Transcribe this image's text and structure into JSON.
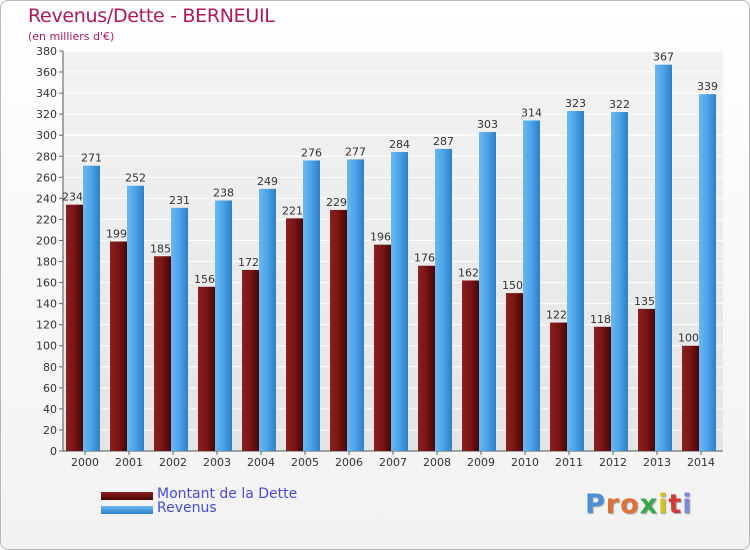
{
  "chart_data": {
    "type": "bar",
    "title": "Revenus/Dette - BERNEUIL",
    "subtitle": "(en milliers d'€)",
    "xlabel": "",
    "ylabel": "",
    "ylim": [
      0,
      380
    ],
    "ytick_step": 20,
    "grid": true,
    "categories": [
      "2000",
      "2001",
      "2002",
      "2003",
      "2004",
      "2005",
      "2006",
      "2007",
      "2008",
      "2009",
      "2010",
      "2011",
      "2012",
      "2013",
      "2014"
    ],
    "series": [
      {
        "name": "Montant de la Dette",
        "color": "#7a1414",
        "values": [
          234,
          199,
          185,
          156,
          172,
          221,
          229,
          196,
          176,
          162,
          150,
          122,
          118,
          135,
          100
        ]
      },
      {
        "name": "Revenus",
        "color": "#4aa3e8",
        "values": [
          271,
          252,
          231,
          238,
          249,
          276,
          277,
          284,
          287,
          303,
          314,
          323,
          322,
          367,
          339
        ]
      }
    ],
    "legend_position": "bottom-left"
  },
  "logo": {
    "text": "Proxiti",
    "letter_colors": [
      "#4a90d9",
      "#e0703a",
      "#e0703a",
      "#3aa84a",
      "#d8c020",
      "#d23a3a",
      "#7a8ad8"
    ]
  }
}
